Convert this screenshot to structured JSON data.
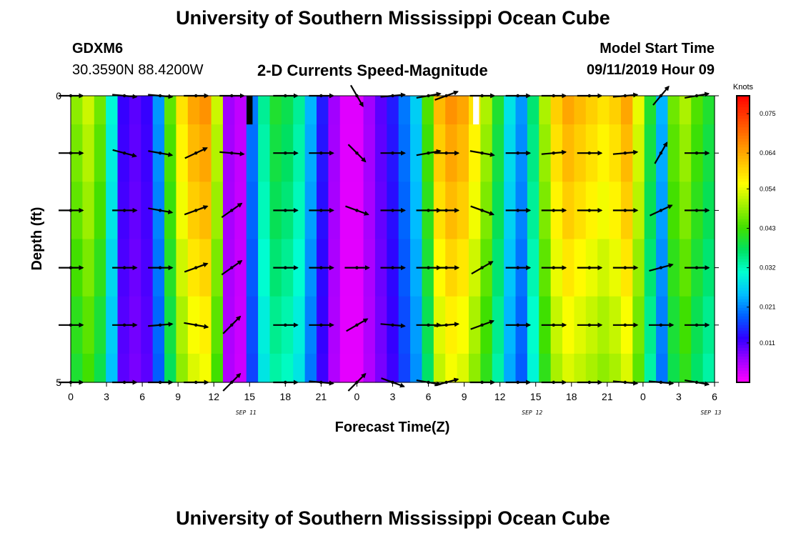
{
  "title": "University of Southern Mississippi Ocean Cube",
  "footer_title": "University of Southern Mississippi Ocean Cube",
  "station": {
    "name": "GDXM6",
    "coords": "30.3590N 88.4200W"
  },
  "product": "2-D Currents Speed-Magnitude",
  "model": {
    "label": "Model Start Time",
    "time": "09/11/2019 Hour 09"
  },
  "chart_data": {
    "type": "heatmap",
    "title": "2-D Currents Speed-Magnitude",
    "xlabel": "Forecast Time(Z)",
    "ylabel": "Depth (ft)",
    "xlim": [
      0,
      54
    ],
    "ylim": [
      0,
      5
    ],
    "x_ticks": [
      "0",
      "3",
      "6",
      "9",
      "12",
      "15",
      "18",
      "21",
      "0",
      "3",
      "6",
      "9",
      "12",
      "15",
      "18",
      "21",
      "0",
      "3",
      "6"
    ],
    "y_tick_labels": [
      {
        "v": 0,
        "label": "0"
      },
      {
        "v": 5,
        "label": "5"
      }
    ],
    "y_ticks": [
      0,
      1,
      2,
      3,
      4,
      5
    ],
    "date_labels": [
      {
        "label": "SEP 11",
        "hour": 15
      },
      {
        "label": "SEP 12",
        "hour": 39
      },
      {
        "label": "SEP 13",
        "hour": 54
      }
    ],
    "depth_rows": [
      0,
      0.5,
      1.5,
      2.5,
      3.5,
      4.5
    ],
    "colorbar": {
      "unit": "Knots",
      "min": 0.0,
      "max": 0.08,
      "tick_labels": [
        "0.075",
        "0.064",
        "0.054",
        "0.043",
        "0.032",
        "0.021",
        "0.011"
      ],
      "tick_values": [
        0.075,
        0.064,
        0.054,
        0.043,
        0.032,
        0.021,
        0.011
      ],
      "colors": [
        "#ff00ff",
        "#a000ff",
        "#3000ff",
        "#0060ff",
        "#00c0ff",
        "#00ffd0",
        "#00e060",
        "#40e000",
        "#a0f000",
        "#ffff00",
        "#ffc000",
        "#ff8000",
        "#ff4000",
        "#ff0000"
      ]
    },
    "speed_profile_knots": [
      0.048,
      0.052,
      0.046,
      0.03,
      0.012,
      0.01,
      0.012,
      0.022,
      0.045,
      0.058,
      0.064,
      0.066,
      0.052,
      0.006,
      0.004,
      0.02,
      0.034,
      0.04,
      0.038,
      0.034,
      0.024,
      0.014,
      0.006,
      0.002,
      0.002,
      0.006,
      0.01,
      0.014,
      0.02,
      0.026,
      0.044,
      0.062,
      0.066,
      0.064,
      0.058,
      0.05,
      0.04,
      0.028,
      0.022,
      0.036,
      0.05,
      0.06,
      0.064,
      0.062,
      0.06,
      0.058,
      0.06,
      0.064,
      0.054,
      0.04,
      0.024,
      0.046,
      0.05,
      0.044,
      0.04
    ],
    "missing_cells": [
      {
        "hour": 15,
        "row": 0,
        "color": "#000000"
      },
      {
        "hour": 34,
        "row": 0,
        "color": "#ffffff"
      }
    ],
    "arrows": {
      "hours": [
        0,
        4.5,
        7.5,
        10.5,
        13.5,
        18,
        21,
        24,
        27,
        30,
        31.5,
        34.5,
        37.5,
        40.5,
        43.5,
        46.5,
        49.5,
        52.5
      ],
      "depth_rows": [
        0,
        1,
        2,
        3,
        4,
        5
      ],
      "directions_deg": [
        [
          0,
          -5,
          -5,
          0,
          0,
          0,
          0,
          -60,
          5,
          10,
          20,
          0,
          0,
          0,
          0,
          5,
          50,
          10
        ],
        [
          0,
          -15,
          -10,
          25,
          -5,
          0,
          0,
          -45,
          0,
          10,
          0,
          -10,
          0,
          5,
          0,
          5,
          60,
          0
        ],
        [
          0,
          0,
          -10,
          20,
          35,
          0,
          0,
          -20,
          0,
          0,
          0,
          -20,
          0,
          0,
          0,
          0,
          25,
          0
        ],
        [
          0,
          0,
          0,
          20,
          35,
          0,
          0,
          0,
          0,
          0,
          0,
          30,
          0,
          0,
          0,
          0,
          15,
          0
        ],
        [
          0,
          0,
          5,
          -10,
          45,
          0,
          0,
          30,
          -5,
          0,
          5,
          20,
          0,
          0,
          0,
          0,
          0,
          0
        ],
        [
          0,
          0,
          0,
          0,
          45,
          0,
          -5,
          45,
          -20,
          -10,
          15,
          0,
          0,
          0,
          0,
          -5,
          -5,
          -10
        ]
      ]
    }
  }
}
